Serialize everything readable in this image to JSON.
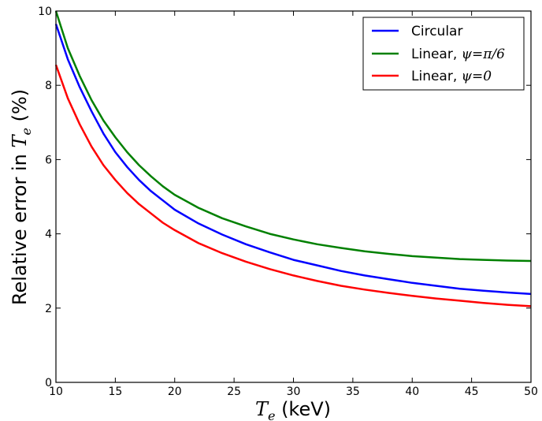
{
  "chart_data": {
    "type": "line",
    "title": "",
    "xlabel": {
      "prefix": "",
      "math": "T",
      "sub": "e",
      "suffix": " (keV)"
    },
    "ylabel": {
      "prefix": "Relative error in ",
      "math": "T",
      "sub": "e",
      "suffix": "  (%)"
    },
    "xlim": [
      10,
      50
    ],
    "ylim": [
      0,
      10
    ],
    "xticks": [
      "10",
      "15",
      "20",
      "25",
      "30",
      "35",
      "40",
      "45",
      "50"
    ],
    "yticks": [
      "0",
      "2",
      "4",
      "6",
      "8",
      "10"
    ],
    "grid": false,
    "legend_position": "top-right",
    "x": [
      10,
      11,
      12,
      13,
      14,
      15,
      16,
      17,
      18,
      19,
      20,
      22,
      24,
      26,
      28,
      30,
      32,
      34,
      36,
      38,
      40,
      42,
      44,
      46,
      48,
      50
    ],
    "series": [
      {
        "name": "Circular",
        "color": "#0000ff",
        "values": [
          9.65,
          8.7,
          7.95,
          7.3,
          6.7,
          6.2,
          5.8,
          5.45,
          5.15,
          4.9,
          4.65,
          4.28,
          3.98,
          3.72,
          3.5,
          3.3,
          3.15,
          3.0,
          2.88,
          2.78,
          2.68,
          2.6,
          2.52,
          2.47,
          2.42,
          2.38
        ]
      },
      {
        "name": "Linear, ",
        "name_math": "ψ=π/6",
        "color": "#008000",
        "values": [
          10.0,
          9.0,
          8.25,
          7.6,
          7.05,
          6.6,
          6.2,
          5.85,
          5.55,
          5.28,
          5.05,
          4.7,
          4.42,
          4.2,
          4.0,
          3.85,
          3.72,
          3.62,
          3.53,
          3.46,
          3.4,
          3.36,
          3.32,
          3.3,
          3.28,
          3.27
        ]
      },
      {
        "name": "Linear, ",
        "name_math": "ψ=0",
        "color": "#ff0000",
        "values": [
          8.55,
          7.65,
          6.95,
          6.35,
          5.85,
          5.45,
          5.1,
          4.8,
          4.55,
          4.3,
          4.1,
          3.75,
          3.48,
          3.25,
          3.05,
          2.88,
          2.73,
          2.6,
          2.5,
          2.41,
          2.33,
          2.26,
          2.2,
          2.14,
          2.09,
          2.05
        ]
      }
    ]
  }
}
